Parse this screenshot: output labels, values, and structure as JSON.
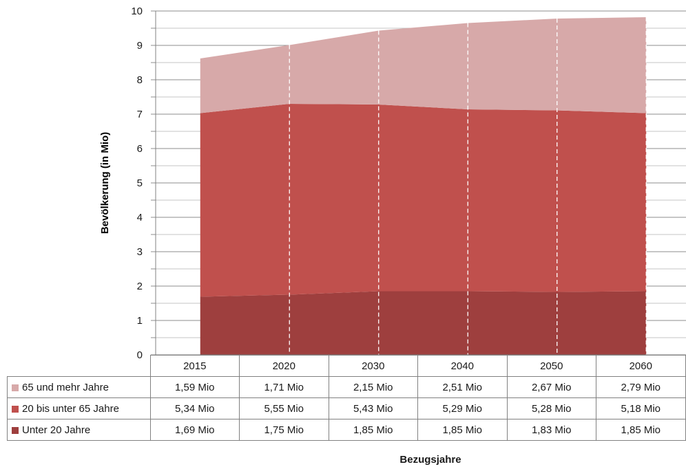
{
  "chart_data": {
    "type": "area",
    "stacked": true,
    "categories": [
      "2015",
      "2020",
      "2030",
      "2040",
      "2050",
      "2060"
    ],
    "series": [
      {
        "name": "Unter 20 Jahre",
        "values": [
          1.69,
          1.75,
          1.85,
          1.85,
          1.83,
          1.85
        ],
        "labels": [
          "1,69 Mio",
          "1,75 Mio",
          "1,85 Mio",
          "1,85 Mio",
          "1,83 Mio",
          "1,85 Mio"
        ],
        "color": "#9e3f3e"
      },
      {
        "name": "20 bis unter 65 Jahre",
        "values": [
          5.34,
          5.55,
          5.43,
          5.29,
          5.28,
          5.18
        ],
        "labels": [
          "5,34 Mio",
          "5,55 Mio",
          "5,43 Mio",
          "5,29 Mio",
          "5,28 Mio",
          "5,18 Mio"
        ],
        "color": "#c0504d"
      },
      {
        "name": "65 und mehr Jahre",
        "values": [
          1.59,
          1.71,
          2.15,
          2.51,
          2.67,
          2.79
        ],
        "labels": [
          "1,59 Mio",
          "1,71 Mio",
          "2,15 Mio",
          "2,51 Mio",
          "2,67 Mio",
          "2,79 Mio"
        ],
        "color": "#d7a9a9"
      }
    ],
    "ylabel": "Bevölkerung (in Mio)",
    "xlabel": "Bezugsjahre",
    "ylim": [
      0,
      10
    ],
    "yticks": [
      "0",
      "1",
      "2",
      "3",
      "4",
      "5",
      "6",
      "7",
      "8",
      "9",
      "10"
    ],
    "grid": true,
    "legend": "data-table-below"
  }
}
